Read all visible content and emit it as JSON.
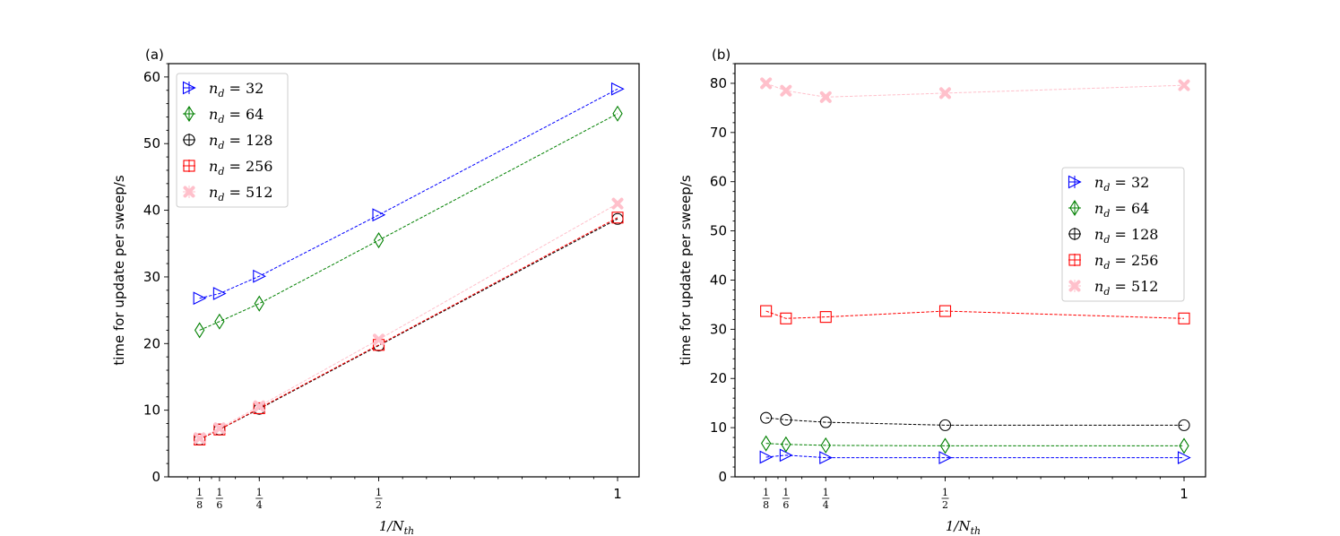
{
  "chart_data": [
    {
      "type": "line",
      "panel_label": "(a)",
      "ylabel": "time for update per sweep/s",
      "xlabel_main": "1/N",
      "xlabel_sub": "th",
      "ylim": [
        0,
        62
      ],
      "xlim": [
        0.06,
        1.045
      ],
      "yticks": [
        0,
        10,
        20,
        30,
        40,
        50,
        60
      ],
      "yticks_text": [
        "0",
        "10",
        "20",
        "30",
        "40",
        "50",
        "60"
      ],
      "xticks": [
        {
          "value": 0.125,
          "num": "1",
          "den": "8"
        },
        {
          "value": 0.1667,
          "num": "1",
          "den": "6"
        },
        {
          "value": 0.25,
          "num": "1",
          "den": "4"
        },
        {
          "value": 0.5,
          "num": "1",
          "den": "2"
        },
        {
          "value": 1,
          "num": "1",
          "den": ""
        }
      ],
      "legend_position": "upper-left",
      "x": [
        0.125,
        0.1667,
        0.25,
        0.5,
        1
      ],
      "series": [
        {
          "name": "n_d = 32",
          "label_main": "n",
          "label_sub": "d",
          "label_rest": " = 32",
          "color": "#0000ff",
          "marker": "triangle-right",
          "values": [
            26.8,
            27.5,
            30.1,
            39.3,
            58.2
          ]
        },
        {
          "name": "n_d = 64",
          "label_main": "n",
          "label_sub": "d",
          "label_rest": " = 64",
          "color": "#008000",
          "marker": "diamond",
          "values": [
            22.0,
            23.3,
            26.0,
            35.5,
            54.5
          ]
        },
        {
          "name": "n_d = 128",
          "label_main": "n",
          "label_sub": "d",
          "label_rest": " = 128",
          "color": "#000000",
          "marker": "circle",
          "values": [
            5.6,
            7.1,
            10.2,
            19.7,
            38.7
          ]
        },
        {
          "name": "n_d = 256",
          "label_main": "n",
          "label_sub": "d",
          "label_rest": " = 256",
          "color": "#ff0000",
          "marker": "square",
          "values": [
            5.6,
            7.1,
            10.3,
            19.8,
            38.9
          ]
        },
        {
          "name": "n_d = 512",
          "label_main": "n",
          "label_sub": "d",
          "label_rest": " = 512",
          "color": "#ffc0cb",
          "marker": "x-thick",
          "values": [
            5.8,
            7.3,
            10.6,
            20.6,
            41.0
          ]
        }
      ]
    },
    {
      "type": "line",
      "panel_label": "(b)",
      "ylabel": "time for update per sweep/s",
      "xlabel_main": "1/N",
      "xlabel_sub": "th",
      "ylim": [
        0,
        84
      ],
      "xlim": [
        0.06,
        1.045
      ],
      "yticks": [
        0,
        10,
        20,
        30,
        40,
        50,
        60,
        70,
        80
      ],
      "yticks_text": [
        "0",
        "10",
        "20",
        "30",
        "40",
        "50",
        "60",
        "70",
        "80"
      ],
      "xticks": [
        {
          "value": 0.125,
          "num": "1",
          "den": "8"
        },
        {
          "value": 0.1667,
          "num": "1",
          "den": "6"
        },
        {
          "value": 0.25,
          "num": "1",
          "den": "4"
        },
        {
          "value": 0.5,
          "num": "1",
          "den": "2"
        },
        {
          "value": 1,
          "num": "1",
          "den": ""
        }
      ],
      "legend_position": "center-right",
      "x": [
        0.125,
        0.1667,
        0.25,
        0.5,
        1
      ],
      "series": [
        {
          "name": "n_d = 32",
          "label_main": "n",
          "label_sub": "d",
          "label_rest": " = 32",
          "color": "#0000ff",
          "marker": "triangle-right",
          "values": [
            4.0,
            4.4,
            3.9,
            3.9,
            3.9
          ]
        },
        {
          "name": "n_d = 64",
          "label_main": "n",
          "label_sub": "d",
          "label_rest": " = 64",
          "color": "#008000",
          "marker": "diamond",
          "values": [
            6.8,
            6.6,
            6.4,
            6.3,
            6.3
          ]
        },
        {
          "name": "n_d = 128",
          "label_main": "n",
          "label_sub": "d",
          "label_rest": " = 128",
          "color": "#000000",
          "marker": "circle",
          "values": [
            12.0,
            11.6,
            11.1,
            10.5,
            10.5
          ]
        },
        {
          "name": "n_d = 256",
          "label_main": "n",
          "label_sub": "d",
          "label_rest": " = 256",
          "color": "#ff0000",
          "marker": "square",
          "values": [
            33.7,
            32.2,
            32.5,
            33.7,
            32.2
          ]
        },
        {
          "name": "n_d = 512",
          "label_main": "n",
          "label_sub": "d",
          "label_rest": " = 512",
          "color": "#ffc0cb",
          "marker": "x-thick",
          "values": [
            80.0,
            78.5,
            77.2,
            78.0,
            79.6
          ]
        }
      ]
    }
  ]
}
